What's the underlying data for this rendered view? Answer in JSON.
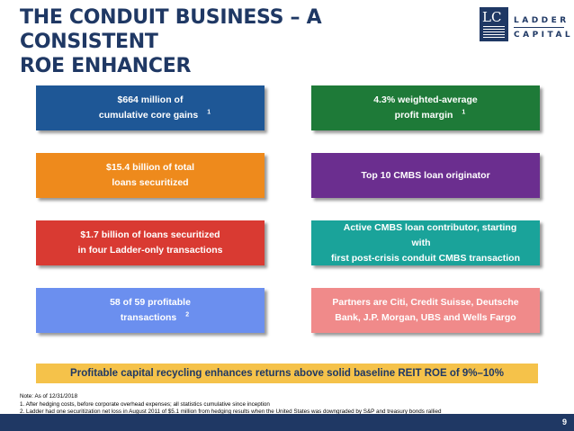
{
  "slide": {
    "title_line1": "THE CONDUIT BUSINESS – A CONSISTENT",
    "title_line2": "ROE ENHANCER",
    "page_number": "9"
  },
  "logo": {
    "monogram": "LC",
    "word1": "LADDER",
    "word2": "CAPITAL"
  },
  "boxes": [
    {
      "line1": "$664 million of",
      "line2": "cumulative core gains",
      "sup": "1",
      "color": "#1e5796"
    },
    {
      "line1": "4.3% weighted-average",
      "line2": "profit margin",
      "sup": "1",
      "color": "#1e7a38"
    },
    {
      "line1": "$15.4 billion of total",
      "line2": "loans securitized",
      "sup": "",
      "color": "#ee8a1c"
    },
    {
      "line1": "Top 10 CMBS loan originator",
      "line2": "",
      "sup": "",
      "color": "#6b2e8f"
    },
    {
      "line1": "$1.7 billion of loans securitized",
      "line2": "in four Ladder-only transactions",
      "sup": "",
      "color": "#d93a32"
    },
    {
      "line1": "Active CMBS loan contributor, starting with",
      "line2": "first post-crisis conduit CMBS transaction",
      "sup": "",
      "color": "#1aa39a"
    },
    {
      "line1": "58 of 59 profitable",
      "line2": "transactions",
      "sup": "2",
      "color": "#6b8fef"
    },
    {
      "line1": "Partners are Citi, Credit Suisse, Deutsche",
      "line2": "Bank, J.P. Morgan, UBS and Wells Fargo",
      "sup": "",
      "color": "#f08a8a"
    }
  ],
  "banner": {
    "text": "Profitable capital recycling enhances returns above solid baseline REIT ROE of 9%–10%"
  },
  "notes": {
    "line1": "Note: As of 12/31/2018",
    "line2": "1. After hedging costs, before corporate overhead expenses; all statistics cumulative since inception",
    "line3": "2. Ladder had one securitization net loss in August 2011 of $5.1 million from hedging results when the United States was downgraded by S&P and treasury bonds rallied"
  }
}
